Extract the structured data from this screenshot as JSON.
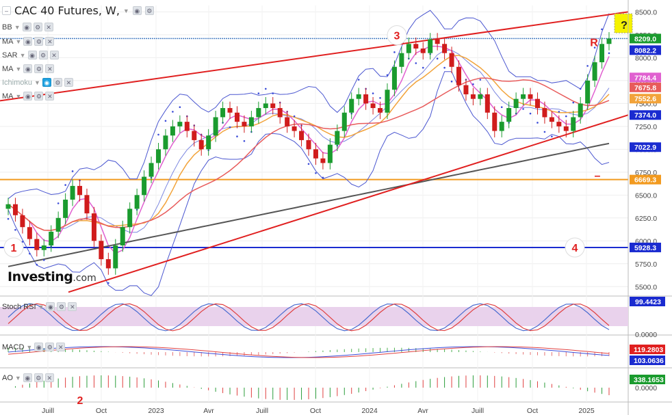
{
  "header": {
    "title": "CAC 40 Futures, W,",
    "indicators": [
      {
        "name": "BB"
      },
      {
        "name": "MA"
      },
      {
        "name": "SAR"
      },
      {
        "name": "MA"
      },
      {
        "name": "Ichimoku"
      },
      {
        "name": "MA"
      }
    ]
  },
  "logo": {
    "brand": "Investing",
    "suffix": ".com"
  },
  "colors": {
    "up": "#1a9b2e",
    "down": "#d01c1c",
    "trend": "#e01f1f",
    "bb": "#4a56d0",
    "ma_long": "#555555",
    "ma_mid": "#f2a33a",
    "ma_fast": "#e060d0",
    "ma_red": "#e85b5b",
    "support_blue": "#1a2bd0",
    "support_orange": "#f29a1f",
    "rsi_fill": "#e9d2ec"
  },
  "chart_data": {
    "type": "candlestick",
    "instrument": "CAC 40 Futures",
    "timeframe": "W",
    "x_tick_labels": [
      "Juill",
      "Oct",
      "2023",
      "Avr",
      "Juill",
      "Oct",
      "2024",
      "Avr",
      "Juill",
      "Oct",
      "2025"
    ],
    "y_tick_labels": [
      "8500.0",
      "8250.0",
      "8000.0",
      "7750.0",
      "7500.0",
      "7250.0",
      "7000.0",
      "6750.0",
      "6500.0",
      "6250.0",
      "6000.0",
      "5750.0",
      "5500.0"
    ],
    "ylim": [
      5420,
      8570
    ],
    "closes": [
      6400,
      6280,
      6150,
      6020,
      5900,
      5950,
      6100,
      6250,
      6450,
      6600,
      6500,
      6300,
      6000,
      5800,
      5700,
      5950,
      6150,
      6350,
      6500,
      6700,
      6850,
      7000,
      7150,
      7250,
      7300,
      7200,
      7100,
      7000,
      7150,
      7350,
      7450,
      7400,
      7300,
      7250,
      7350,
      7450,
      7500,
      7450,
      7350,
      7250,
      7200,
      7100,
      7000,
      6900,
      6850,
      7050,
      7200,
      7400,
      7550,
      7600,
      7500,
      7450,
      7400,
      7650,
      7900,
      8050,
      8150,
      8100,
      8050,
      8200,
      8150,
      8050,
      7900,
      7700,
      7600,
      7550,
      7600,
      7400,
      7200,
      7300,
      7450,
      7550,
      7600,
      7550,
      7450,
      7350,
      7300,
      7250,
      7200,
      7350,
      7500,
      7750,
      7950,
      8150,
      8209
    ],
    "levels": [
      {
        "label": "8209.0",
        "value": 8209,
        "color": "#1a9b2e"
      },
      {
        "label": "8082.2",
        "value": 8082,
        "color": "#1a2bd0"
      },
      {
        "label": "7784.4",
        "value": 7784,
        "color": "#e060d0"
      },
      {
        "label": "7675.8",
        "value": 7676,
        "color": "#e85b5b"
      },
      {
        "label": "7552.6",
        "value": 7553,
        "color": "#f2a33a"
      },
      {
        "label": "7374.0",
        "value": 7374,
        "color": "#1a2bd0"
      },
      {
        "label": "7022.9",
        "value": 7023,
        "color": "#1a2bd0"
      },
      {
        "label": "6669.3",
        "value": 6669,
        "color": "#f29a1f"
      },
      {
        "label": "5928.3",
        "value": 5928,
        "color": "#1a2bd0"
      }
    ],
    "annotations": [
      {
        "text": "1"
      },
      {
        "text": "2"
      },
      {
        "text": "3"
      },
      {
        "text": "4"
      },
      {
        "text": "R"
      },
      {
        "text": "?"
      },
      {
        "text": "–"
      }
    ],
    "subpanels": {
      "stoch_rsi": {
        "label": "Stoch RSI",
        "value": "99.4423",
        "zero": "0.0000"
      },
      "macd": {
        "label": "MACD",
        "value1": "119.2803",
        "value2": "103.0636"
      },
      "ao": {
        "label": "AO",
        "value": "338.1653",
        "zero": "0.0000"
      }
    }
  }
}
